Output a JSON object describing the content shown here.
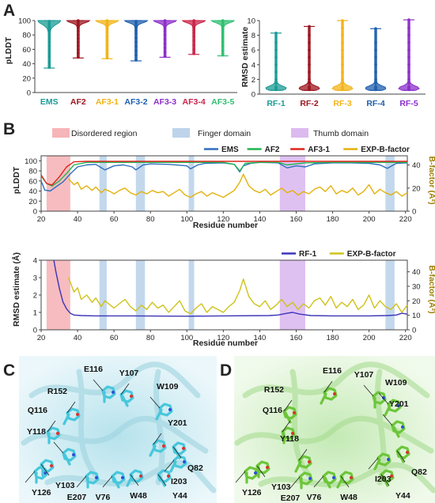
{
  "panels": {
    "a": "A",
    "b": "B",
    "c": "C",
    "d": "D"
  },
  "chart_data": [
    {
      "id": "A-left",
      "type": "violin",
      "ylabel": "pLDDT",
      "ylim": [
        0,
        100
      ],
      "yticks": [
        0,
        20,
        40,
        60,
        80,
        100
      ],
      "categories": [
        "EMS",
        "AF2",
        "AF3-1",
        "AF3-2",
        "AF3-3",
        "AF3-4",
        "AF3-5"
      ],
      "colors": [
        "#1a9b94",
        "#9c1620",
        "#f2b418",
        "#1f5fad",
        "#8b2fc9",
        "#c8254a",
        "#2fbf71"
      ],
      "series": [
        {
          "values": [
            35,
            42,
            50,
            55,
            60,
            65,
            70,
            75,
            80,
            85,
            88,
            90,
            92,
            94,
            95,
            96,
            97,
            98,
            99
          ],
          "range": [
            34,
            100
          ]
        },
        {
          "values": [
            49,
            55,
            60,
            65,
            70,
            75,
            80,
            85,
            90,
            93,
            95,
            97,
            98,
            99,
            100
          ],
          "range": [
            48,
            100
          ]
        },
        {
          "values": [
            48,
            54,
            60,
            66,
            72,
            78,
            84,
            88,
            92,
            95,
            97,
            99,
            100
          ],
          "range": [
            47,
            100
          ]
        },
        {
          "values": [
            45,
            52,
            58,
            64,
            70,
            76,
            82,
            86,
            90,
            93,
            96,
            98,
            99
          ],
          "range": [
            44,
            100
          ]
        },
        {
          "values": [
            50,
            56,
            62,
            68,
            74,
            80,
            85,
            89,
            92,
            95,
            97,
            99,
            100
          ],
          "range": [
            49,
            100
          ]
        },
        {
          "values": [
            54,
            60,
            66,
            72,
            78,
            83,
            87,
            91,
            94,
            96,
            98,
            99,
            100
          ],
          "range": [
            53,
            100
          ]
        },
        {
          "values": [
            52,
            58,
            64,
            70,
            76,
            82,
            86,
            90,
            93,
            96,
            98,
            99,
            100
          ],
          "range": [
            51,
            100
          ]
        }
      ]
    },
    {
      "id": "A-right",
      "type": "violin",
      "ylabel": "RMSD estimate",
      "ylim": [
        0,
        10
      ],
      "yticks": [
        0,
        2,
        4,
        6,
        8,
        10
      ],
      "categories": [
        "RF-1",
        "RF-2",
        "RF-3",
        "RF-4",
        "RF-5"
      ],
      "colors": [
        "#1a9b94",
        "#9c1620",
        "#f2b418",
        "#1f5fad",
        "#8b2fc9"
      ],
      "series": [
        {
          "values": [
            0.6,
            0.7,
            0.8,
            0.9,
            1.0,
            1.5,
            2.0,
            3.0,
            4.0,
            5.0,
            6.0,
            7.0,
            8.3
          ],
          "range": [
            0.5,
            8.3
          ]
        },
        {
          "values": [
            0.6,
            0.7,
            0.8,
            0.9,
            1.0,
            1.5,
            2.0,
            3.0,
            4.0,
            5.0,
            6.0,
            7.0,
            8.0,
            9.2
          ],
          "range": [
            0.5,
            9.2
          ]
        },
        {
          "values": [
            0.6,
            0.7,
            0.8,
            0.9,
            1.0,
            1.5,
            2.0,
            3.0,
            4.0,
            5.0,
            6.0,
            7.0,
            8.0,
            9.0,
            10.0
          ],
          "range": [
            0.5,
            10.0
          ]
        },
        {
          "values": [
            0.6,
            0.7,
            0.8,
            0.9,
            1.0,
            1.5,
            2.0,
            3.0,
            4.0,
            5.0,
            6.0,
            7.0,
            8.9
          ],
          "range": [
            0.5,
            8.9
          ]
        },
        {
          "values": [
            0.6,
            0.7,
            0.8,
            0.9,
            1.0,
            1.5,
            2.0,
            3.0,
            4.0,
            5.0,
            6.0,
            7.0,
            8.0,
            9.0,
            10.1
          ],
          "range": [
            0.5,
            10.1
          ]
        }
      ]
    },
    {
      "id": "B-top",
      "type": "line",
      "xlabel": "Residue number",
      "ylabel": "pLDDT",
      "y2label": "B-factor (Å²)",
      "xlim": [
        20,
        221
      ],
      "ylim": [
        0,
        110
      ],
      "y2lim": [
        0,
        48
      ],
      "xticks": [
        20,
        40,
        60,
        80,
        100,
        120,
        140,
        160,
        180,
        200,
        220
      ],
      "yticks": [
        0,
        20,
        40,
        60,
        80,
        100
      ],
      "y2ticks": [
        0,
        20,
        40
      ],
      "regions_legend": [
        "Disordered region",
        "Finger domain",
        "Thumb domain"
      ],
      "regions": [
        {
          "kind": "disordered",
          "x": [
            23,
            36
          ],
          "color": "#f6b5b8"
        },
        {
          "kind": "finger",
          "x": [
            52,
            56
          ],
          "color": "#bdd4ea"
        },
        {
          "kind": "finger",
          "x": [
            72,
            77
          ],
          "color": "#bdd4ea"
        },
        {
          "kind": "finger",
          "x": [
            101,
            104
          ],
          "color": "#bdd4ea"
        },
        {
          "kind": "thumb",
          "x": [
            151,
            165
          ],
          "color": "#dcbaf0"
        },
        {
          "kind": "finger",
          "x": [
            209,
            214
          ],
          "color": "#bdd4ea"
        }
      ],
      "series": [
        {
          "name": "EMS",
          "color": "#2e6fbf",
          "axis": "y",
          "x": [
            20,
            22,
            25,
            28,
            32,
            36,
            40,
            45,
            50,
            55,
            60,
            65,
            70,
            72,
            76,
            80,
            90,
            100,
            102,
            106,
            110,
            120,
            126,
            129,
            131,
            135,
            140,
            150,
            155,
            160,
            165,
            170,
            180,
            190,
            200,
            206,
            210,
            215,
            221
          ],
          "values": [
            60,
            42,
            40,
            48,
            58,
            74,
            88,
            92,
            93,
            82,
            90,
            92,
            88,
            82,
            92,
            94,
            93,
            90,
            84,
            92,
            95,
            96,
            93,
            78,
            90,
            95,
            97,
            96,
            86,
            90,
            88,
            94,
            96,
            96,
            95,
            92,
            85,
            95,
            96
          ]
        },
        {
          "name": "AF2",
          "color": "#21b34f",
          "axis": "y",
          "x": [
            20,
            23,
            26,
            30,
            34,
            38,
            45,
            60,
            90,
            120,
            126,
            129,
            132,
            140,
            150,
            155,
            160,
            165,
            180,
            200,
            221
          ],
          "values": [
            70,
            55,
            50,
            60,
            75,
            92,
            97,
            97,
            97,
            97,
            93,
            80,
            95,
            97,
            97,
            92,
            94,
            96,
            97,
            97,
            97
          ]
        },
        {
          "name": "AF3-1",
          "color": "#e0231c",
          "axis": "y",
          "x": [
            20,
            23,
            26,
            30,
            34,
            38,
            45,
            221
          ],
          "values": [
            72,
            55,
            52,
            68,
            88,
            98,
            99,
            99
          ]
        },
        {
          "name": "EXP-B-factor",
          "color": "#e3b20e",
          "axis": "y2",
          "x": [
            35,
            38,
            40,
            42,
            45,
            48,
            50,
            53,
            55,
            58,
            60,
            63,
            66,
            69,
            72,
            75,
            78,
            81,
            84,
            87,
            90,
            93,
            96,
            99,
            102,
            105,
            108,
            111,
            114,
            117,
            120,
            123,
            126,
            129,
            131,
            134,
            137,
            140,
            143,
            146,
            149,
            152,
            155,
            158,
            161,
            164,
            167,
            170,
            173,
            176,
            179,
            182,
            185,
            188,
            191,
            194,
            197,
            200,
            203,
            206,
            209,
            212,
            215,
            218,
            221
          ],
          "values": [
            28,
            23,
            25,
            19,
            22,
            18,
            21,
            16,
            19,
            17,
            15,
            18,
            20,
            16,
            14,
            17,
            15,
            18,
            16,
            17,
            13,
            16,
            19,
            14,
            12,
            15,
            17,
            13,
            16,
            14,
            12,
            15,
            18,
            25,
            32,
            22,
            18,
            16,
            19,
            14,
            17,
            20,
            16,
            18,
            14,
            17,
            15,
            19,
            21,
            17,
            22,
            15,
            18,
            16,
            20,
            14,
            17,
            23,
            15,
            19,
            16,
            14,
            17,
            13,
            16
          ]
        }
      ]
    },
    {
      "id": "B-bottom",
      "type": "line",
      "xlabel": "Residue number",
      "ylabel": "RMSD estimate (Å)",
      "y2label": "B-factor (Å²)",
      "xlim": [
        20,
        221
      ],
      "ylim": [
        0,
        4
      ],
      "y2lim": [
        0,
        48
      ],
      "xticks": [
        20,
        40,
        60,
        80,
        100,
        120,
        140,
        160,
        180,
        200,
        220
      ],
      "yticks": [
        0,
        1,
        2,
        3,
        4
      ],
      "y2ticks": [
        0,
        10,
        20,
        30,
        40
      ],
      "series": [
        {
          "name": "RF-1",
          "color": "#3b34b8",
          "axis": "y",
          "x": [
            27,
            28,
            30,
            32,
            34,
            36,
            38,
            42,
            50,
            70,
            100,
            120,
            145,
            150,
            155,
            158,
            162,
            168,
            180,
            200,
            210,
            215,
            218,
            221
          ],
          "values": [
            4.0,
            3.4,
            2.4,
            1.6,
            1.2,
            0.95,
            0.85,
            0.82,
            0.8,
            0.8,
            0.78,
            0.8,
            0.82,
            0.85,
            0.95,
            1.0,
            0.9,
            0.82,
            0.8,
            0.8,
            0.82,
            0.85,
            0.95,
            0.9
          ]
        },
        {
          "name": "EXP-B-factor",
          "color": "#cfc21a",
          "axis": "y2",
          "x": [
            35,
            38,
            40,
            42,
            45,
            48,
            50,
            53,
            55,
            58,
            60,
            63,
            66,
            69,
            72,
            75,
            78,
            81,
            84,
            87,
            90,
            93,
            96,
            99,
            102,
            105,
            108,
            111,
            114,
            117,
            120,
            123,
            126,
            129,
            131,
            134,
            137,
            140,
            143,
            146,
            149,
            152,
            155,
            158,
            161,
            164,
            167,
            170,
            173,
            176,
            179,
            182,
            185,
            188,
            191,
            194,
            197,
            200,
            203,
            206,
            209,
            212,
            215,
            218,
            221
          ],
          "values": [
            36,
            26,
            29,
            21,
            24,
            19,
            22,
            16,
            20,
            17,
            15,
            18,
            21,
            16,
            13,
            17,
            14,
            19,
            15,
            17,
            12,
            16,
            20,
            13,
            11,
            15,
            18,
            12,
            16,
            14,
            12,
            16,
            19,
            27,
            35,
            23,
            18,
            16,
            20,
            14,
            17,
            21,
            16,
            19,
            14,
            18,
            15,
            20,
            22,
            17,
            23,
            15,
            19,
            16,
            21,
            14,
            17,
            24,
            15,
            20,
            16,
            14,
            18,
            12,
            17
          ]
        }
      ]
    }
  ],
  "structure_c": {
    "residue_labels": [
      "R152",
      "E116",
      "Y107",
      "W109",
      "Q116",
      "Y118",
      "Y201",
      "Y126",
      "Q82",
      "I203",
      "Y103",
      "V76",
      "W48",
      "E207",
      "Y44"
    ],
    "stick_color": "#47c7dc",
    "background_color": "#bfe6ef"
  },
  "structure_d": {
    "residue_labels": [
      "E116",
      "Y107",
      "R152",
      "W109",
      "Q116",
      "Y201",
      "Y118",
      "Y126",
      "Q82",
      "I203",
      "Y103",
      "V76",
      "W48",
      "E207",
      "Y44"
    ],
    "stick_color": "#6cc63a",
    "background_color": "#cfeec2"
  }
}
